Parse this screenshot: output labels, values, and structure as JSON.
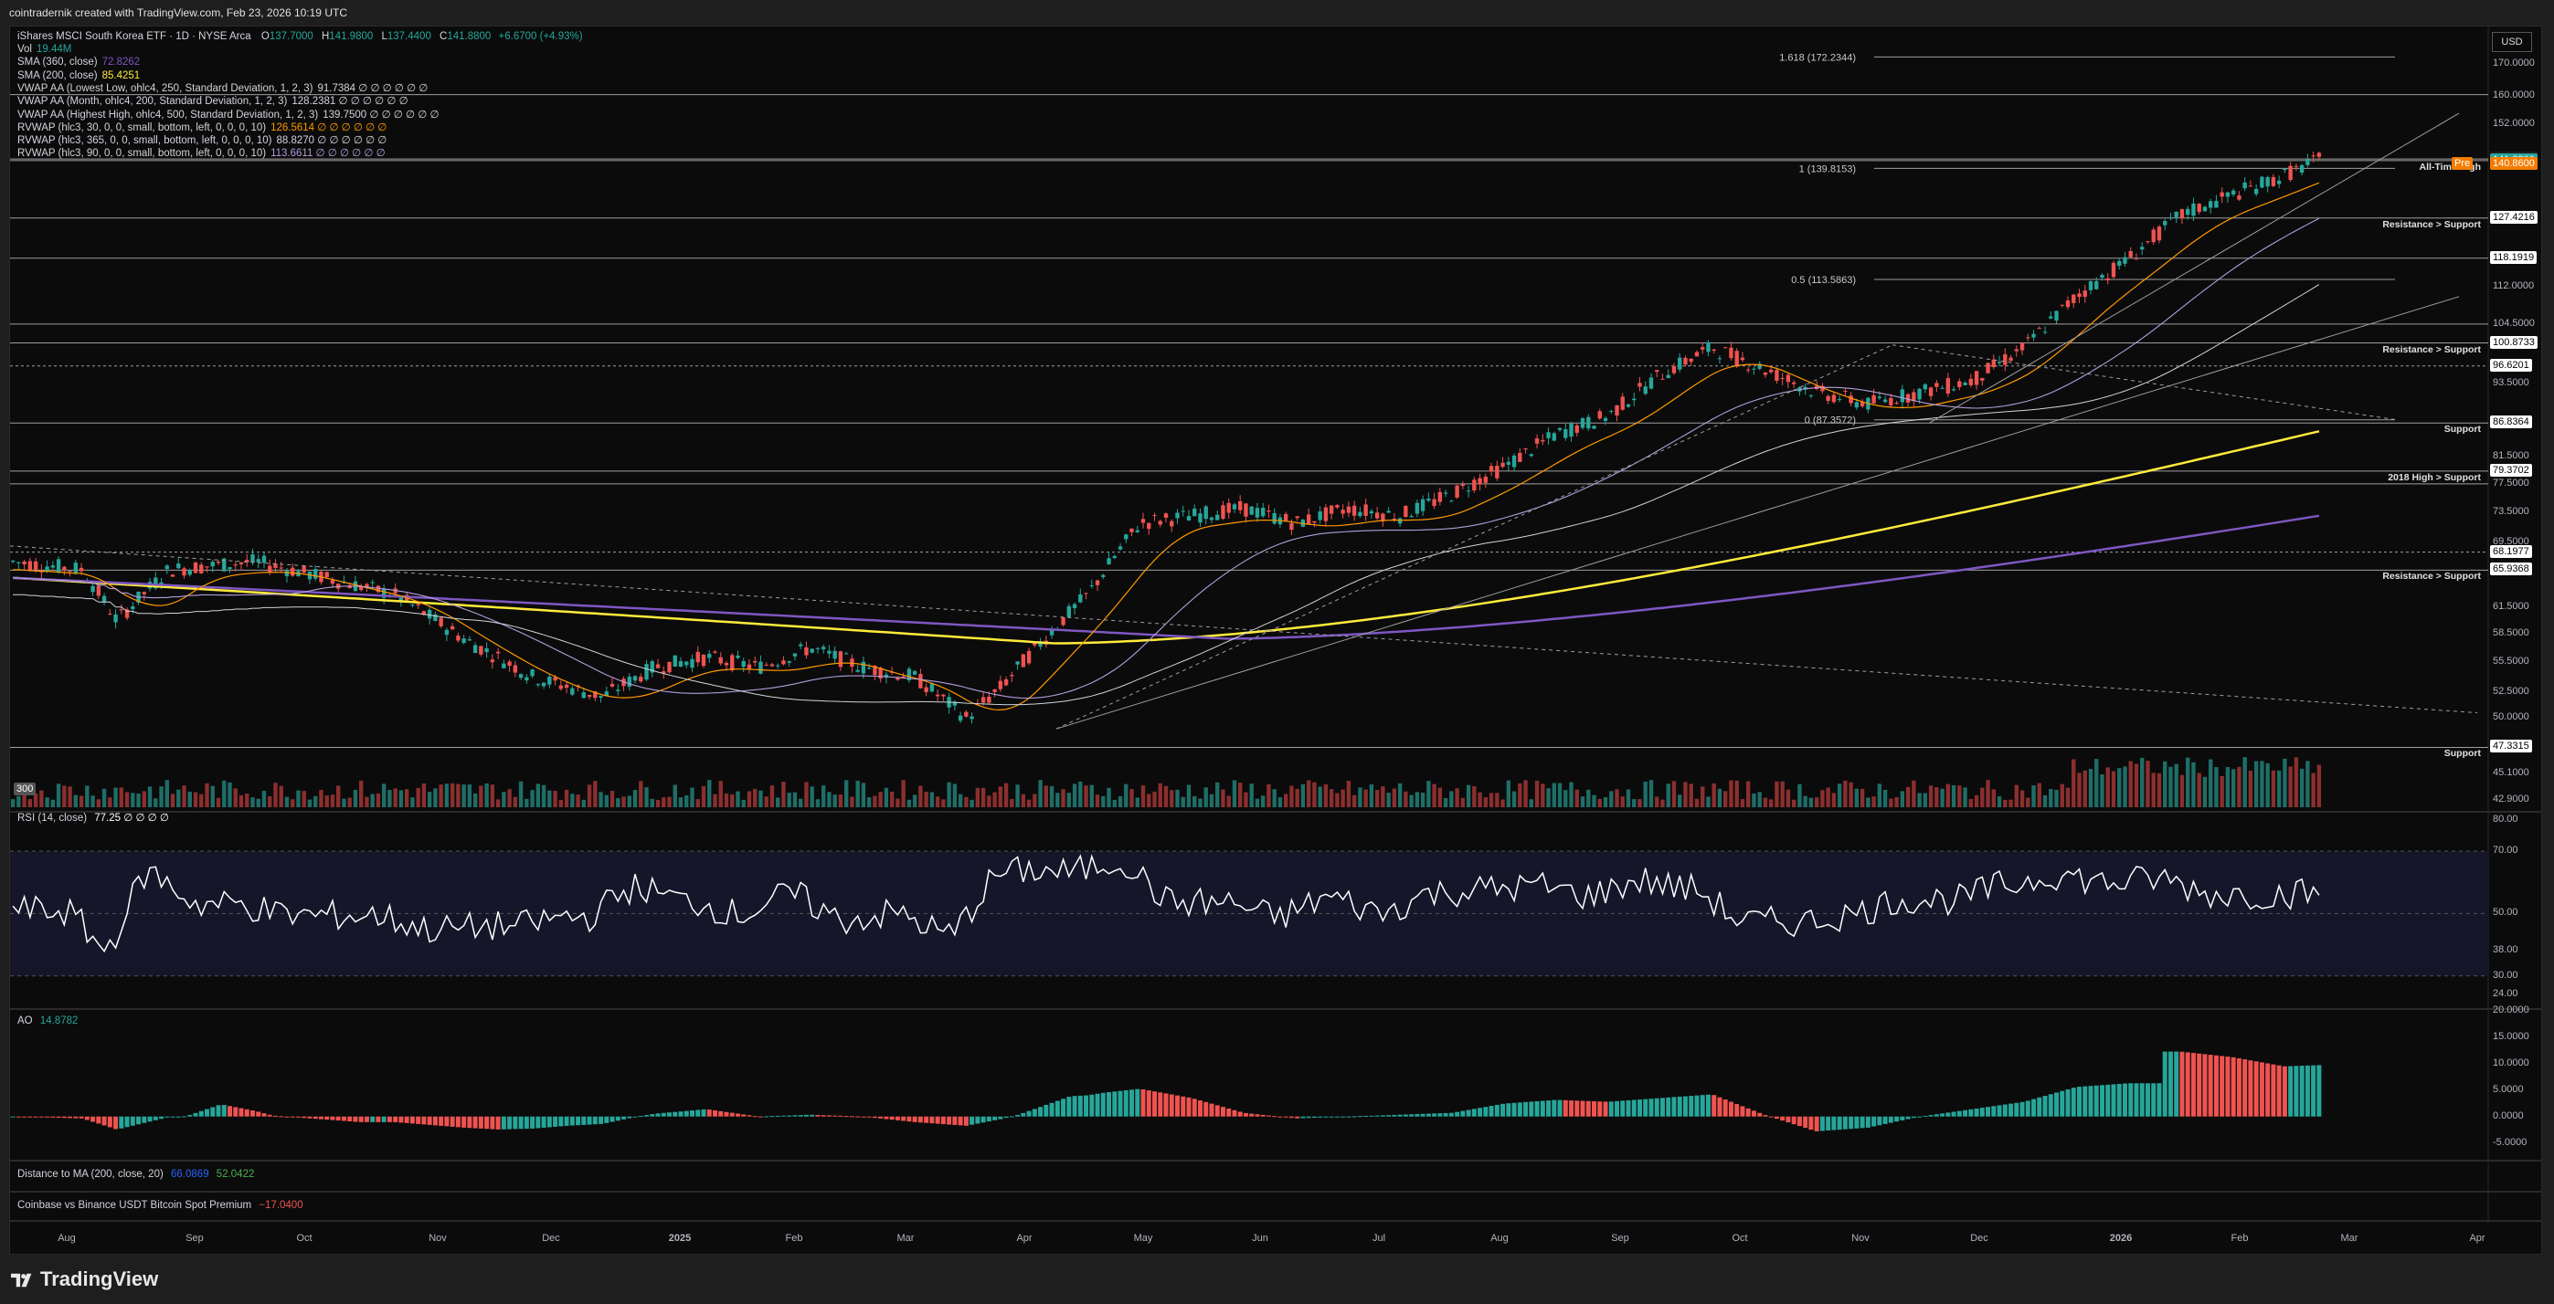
{
  "attribution": "cointradernik created with TradingView.com, Feb 23, 2026 10:19 UTC",
  "currency": "USD",
  "symbol": {
    "name": "iShares MSCI South Korea ETF · 1D · NYSE Arca",
    "o_label": "O",
    "o": "137.7000",
    "h_label": "H",
    "h": "141.9800",
    "l_label": "L",
    "l": "137.4400",
    "c_label": "C",
    "c": "141.8800",
    "change": "+6.6700 (+4.93%)"
  },
  "legend": [
    {
      "label": "Vol",
      "value": "19.44M",
      "color": "#26a69a"
    },
    {
      "label": "SMA (360, close)",
      "value": "72.8262",
      "color": "#7e57c2"
    },
    {
      "label": "SMA (200, close)",
      "value": "85.4251",
      "color": "#ffeb3b"
    },
    {
      "label": "VWAP AA (Lowest Low, ohlc4, 250, Standard Deviation, 1, 2, 3)",
      "value": "91.7384  ∅ ∅ ∅ ∅ ∅ ∅",
      "color": "#d1d4dc"
    },
    {
      "label": "VWAP AA (Month, ohlc4, 200, Standard Deviation, 1, 2, 3)",
      "value": "128.2381  ∅ ∅ ∅ ∅ ∅ ∅",
      "color": "#d1d4dc"
    },
    {
      "label": "VWAP AA (Highest High, ohlc4, 500, Standard Deviation, 1, 2, 3)",
      "value": "139.7500  ∅ ∅ ∅ ∅ ∅ ∅",
      "color": "#d1d4dc"
    },
    {
      "label": "RVWAP (hlc3, 30, 0, 0, small, bottom, left, 0, 0, 0, 10)",
      "value": "126.5614  ∅ ∅ ∅ ∅ ∅ ∅",
      "color": "#ff9800"
    },
    {
      "label": "RVWAP (hlc3, 365, 0, 0, small, bottom, left, 0, 0, 0, 10)",
      "value": "88.8270  ∅ ∅ ∅ ∅ ∅ ∅",
      "color": "#d1d4dc"
    },
    {
      "label": "RVWAP (hlc3, 90, 0, 0, small, bottom, left, 0, 0, 0, 10)",
      "value": "113.6611  ∅ ∅ ∅ ∅ ∅ ∅",
      "color": "#b39ddb"
    }
  ],
  "price_axis": [
    "170.0000",
    "160.0000",
    "152.0000",
    "142.3072",
    "141.8800",
    "140.8600",
    "127.4216",
    "118.1919",
    "112.0000",
    "104.5000",
    "100.8733",
    "96.6201",
    "93.5000",
    "86.8364",
    "81.5000",
    "79.3702",
    "77.5000",
    "73.5000",
    "69.5000",
    "68.1977",
    "65.9368",
    "61.5000",
    "58.5000",
    "55.5000",
    "52.5000",
    "50.0000",
    "47.3315",
    "45.1000",
    "42.9000"
  ],
  "level_labels": [
    {
      "text": "All-Time High",
      "price": 141.88
    },
    {
      "text": "Resistance > Support",
      "price": 127.42
    },
    {
      "text": "Resistance > Support",
      "price": 100.87
    },
    {
      "text": "Support",
      "price": 86.84
    },
    {
      "text": "2018 High > Support",
      "price": 79.37
    },
    {
      "text": "Resistance > Support",
      "price": 65.94
    },
    {
      "text": "Support",
      "price": 47.33
    }
  ],
  "fib_labels": [
    {
      "text": "1.618 (172.2344)",
      "price": 172.2344
    },
    {
      "text": "1 (139.8153)",
      "price": 139.8153
    },
    {
      "text": "0.5 (113.5863)",
      "price": 113.5863
    },
    {
      "text": "0 (87.3572)",
      "price": 87.3572
    }
  ],
  "pre_label": "Pre",
  "pre_price": "140.8600",
  "vol_badge": "300",
  "rsi": {
    "label": "RSI (14, close)",
    "value": "77.25  ∅ ∅ ∅ ∅",
    "axis": [
      "80.00",
      "70.00",
      "50.00",
      "38.00",
      "30.00",
      "24.00"
    ]
  },
  "ao": {
    "label": "AO",
    "value": "14.8782",
    "axis": [
      "20.0000",
      "15.0000",
      "10.0000",
      "5.0000",
      "0.0000",
      "-5.0000"
    ]
  },
  "dist": {
    "label": "Distance to MA (200, close, 20)",
    "v1": "66.0869",
    "v2": "52.0422"
  },
  "premium": {
    "label": "Coinbase vs Binance USDT Bitcoin Spot Premium",
    "value": "−17.0400"
  },
  "time_axis": [
    "Aug",
    "Sep",
    "Oct",
    "Nov",
    "Dec",
    "2025",
    "Feb",
    "Mar",
    "Apr",
    "May",
    "Jun",
    "Jul",
    "Aug",
    "Sep",
    "Oct",
    "Nov",
    "Dec",
    "2026",
    "Feb",
    "Mar",
    "Apr"
  ],
  "brand": "TradingView",
  "colors": {
    "up": "#26a69a",
    "down": "#ef5350",
    "sma200": "#ffeb3b",
    "sma360": "#7e57c2",
    "rvwap30": "#ff9800"
  }
}
